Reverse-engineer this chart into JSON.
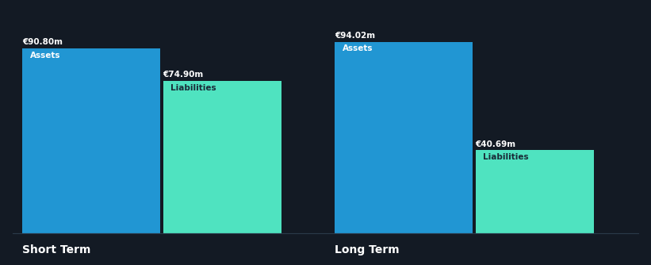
{
  "background_color": "#131a24",
  "bar_color_assets": "#2196d3",
  "bar_color_liabilities": "#4fe3c0",
  "text_color_white": "#ffffff",
  "text_color_dark": "#1a2b38",
  "short_term": {
    "assets": 90.8,
    "liabilities": 74.9,
    "label": "Short Term"
  },
  "long_term": {
    "assets": 94.02,
    "liabilities": 40.69,
    "label": "Long Term"
  },
  "max_value": 100,
  "label_assets": "Assets",
  "label_liabilities": "Liabilities",
  "currency_symbol": "€",
  "unit": "m"
}
